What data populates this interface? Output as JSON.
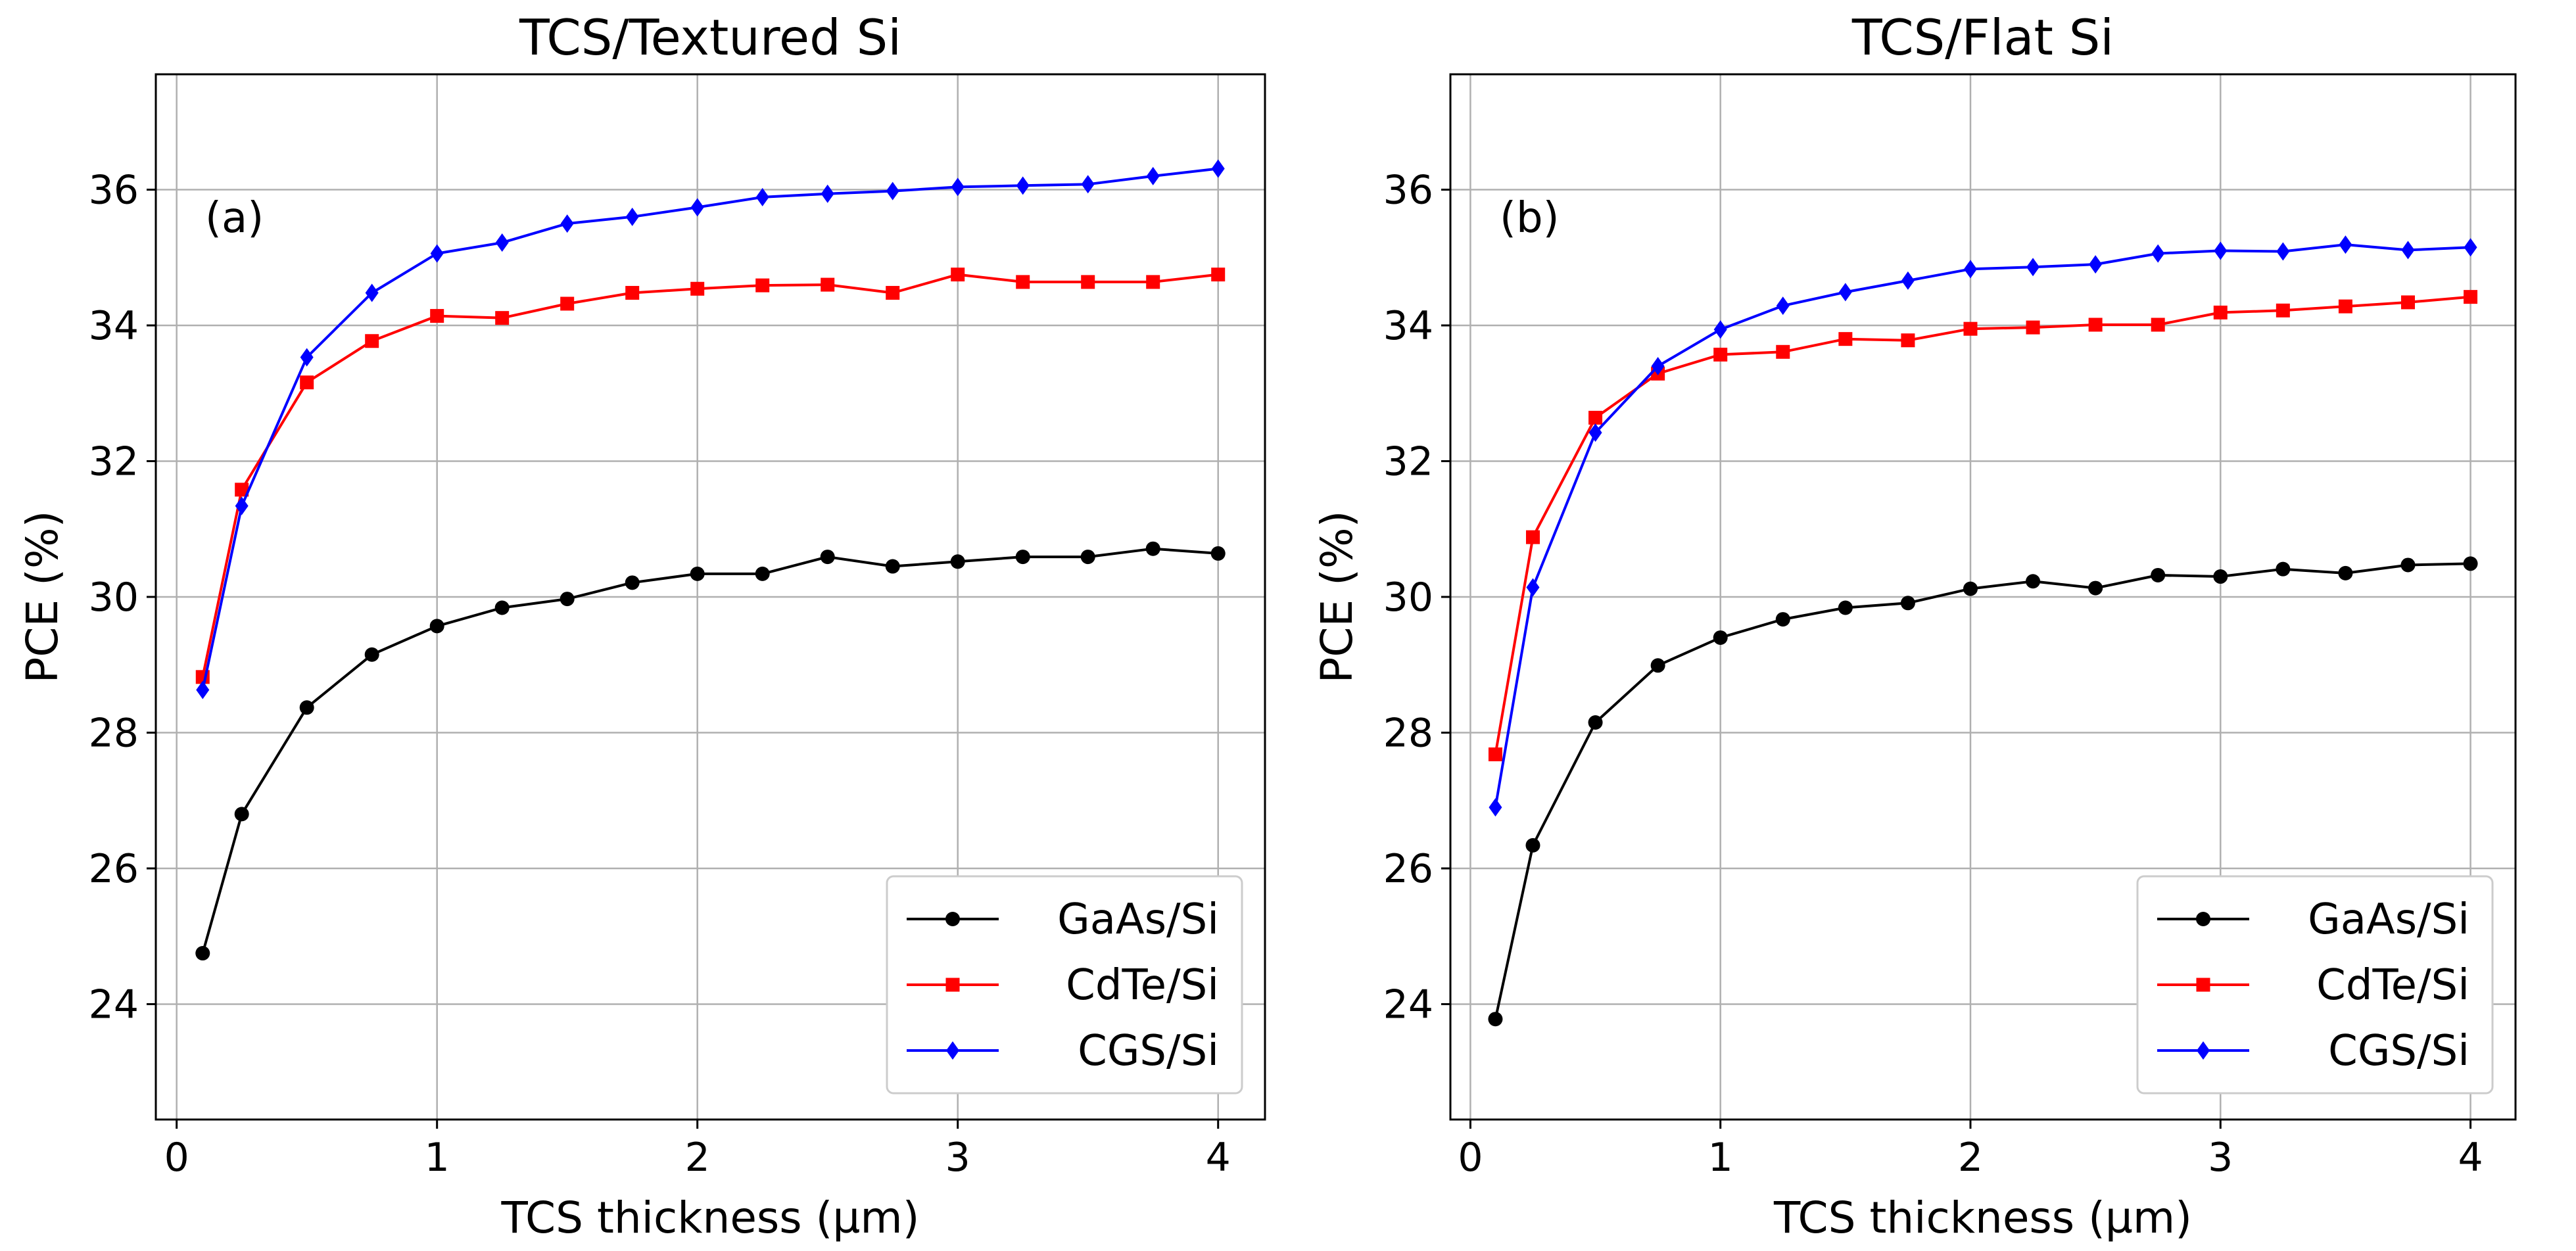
{
  "colors": {
    "GaAs/Si": "#000000",
    "CdTe/Si": "#ff0000",
    "CGS/Si": "#0000ff"
  },
  "markers": {
    "GaAs/Si": "circle",
    "CdTe/Si": "square",
    "CGS/Si": "diamond"
  },
  "chart_data": [
    {
      "type": "line",
      "title": "TCS/Textured Si",
      "panel_label": "(a)",
      "xlabel": "TCS thickness (µm)",
      "ylabel": "PCE (%)",
      "xlim": [
        -0.08,
        4.18
      ],
      "ylim": [
        22.3,
        37.7
      ],
      "xticks": [
        0,
        1,
        2,
        3,
        4
      ],
      "yticks": [
        24,
        26,
        28,
        30,
        32,
        34,
        36
      ],
      "grid": true,
      "legend_position": "lower-right",
      "x": [
        0.1,
        0.25,
        0.5,
        0.75,
        1.0,
        1.25,
        1.5,
        1.75,
        2.0,
        2.25,
        2.5,
        2.75,
        3.0,
        3.25,
        3.5,
        3.75,
        4.0
      ],
      "series": [
        {
          "name": "GaAs/Si",
          "values": [
            24.75,
            26.8,
            28.37,
            29.15,
            29.57,
            29.84,
            29.97,
            30.21,
            30.34,
            30.34,
            30.59,
            30.45,
            30.52,
            30.59,
            30.59,
            30.71,
            30.64
          ]
        },
        {
          "name": "CdTe/Si",
          "values": [
            28.82,
            31.58,
            33.16,
            33.77,
            34.14,
            34.11,
            34.32,
            34.48,
            34.54,
            34.59,
            34.6,
            34.48,
            34.75,
            34.64,
            34.64,
            34.64,
            34.75
          ]
        },
        {
          "name": "CGS/Si",
          "values": [
            28.63,
            31.34,
            33.53,
            34.48,
            35.06,
            35.22,
            35.5,
            35.6,
            35.74,
            35.89,
            35.94,
            35.98,
            36.04,
            36.06,
            36.08,
            36.2,
            36.31
          ]
        }
      ]
    },
    {
      "type": "line",
      "title": "TCS/Flat Si",
      "panel_label": "(b)",
      "xlabel": "TCS thickness (µm)",
      "ylabel": "PCE (%)",
      "xlim": [
        -0.08,
        4.18
      ],
      "ylim": [
        22.3,
        37.7
      ],
      "xticks": [
        0,
        1,
        2,
        3,
        4
      ],
      "yticks": [
        24,
        26,
        28,
        30,
        32,
        34,
        36
      ],
      "grid": true,
      "legend_position": "lower-right",
      "x": [
        0.1,
        0.25,
        0.5,
        0.75,
        1.0,
        1.25,
        1.5,
        1.75,
        2.0,
        2.25,
        2.5,
        2.75,
        3.0,
        3.25,
        3.5,
        3.75,
        4.0
      ],
      "series": [
        {
          "name": "GaAs/Si",
          "values": [
            23.78,
            26.34,
            28.15,
            28.99,
            29.4,
            29.67,
            29.84,
            29.91,
            30.12,
            30.23,
            30.13,
            30.32,
            30.3,
            30.41,
            30.35,
            30.47,
            30.49
          ]
        },
        {
          "name": "CdTe/Si",
          "values": [
            27.68,
            30.88,
            32.64,
            33.29,
            33.57,
            33.61,
            33.8,
            33.78,
            33.95,
            33.97,
            34.01,
            34.01,
            34.19,
            34.22,
            34.28,
            34.34,
            34.42
          ]
        },
        {
          "name": "CGS/Si",
          "values": [
            26.9,
            30.14,
            32.42,
            33.4,
            33.94,
            34.29,
            34.49,
            34.66,
            34.83,
            34.86,
            34.9,
            35.06,
            35.1,
            35.09,
            35.19,
            35.11,
            35.15
          ]
        }
      ]
    }
  ]
}
